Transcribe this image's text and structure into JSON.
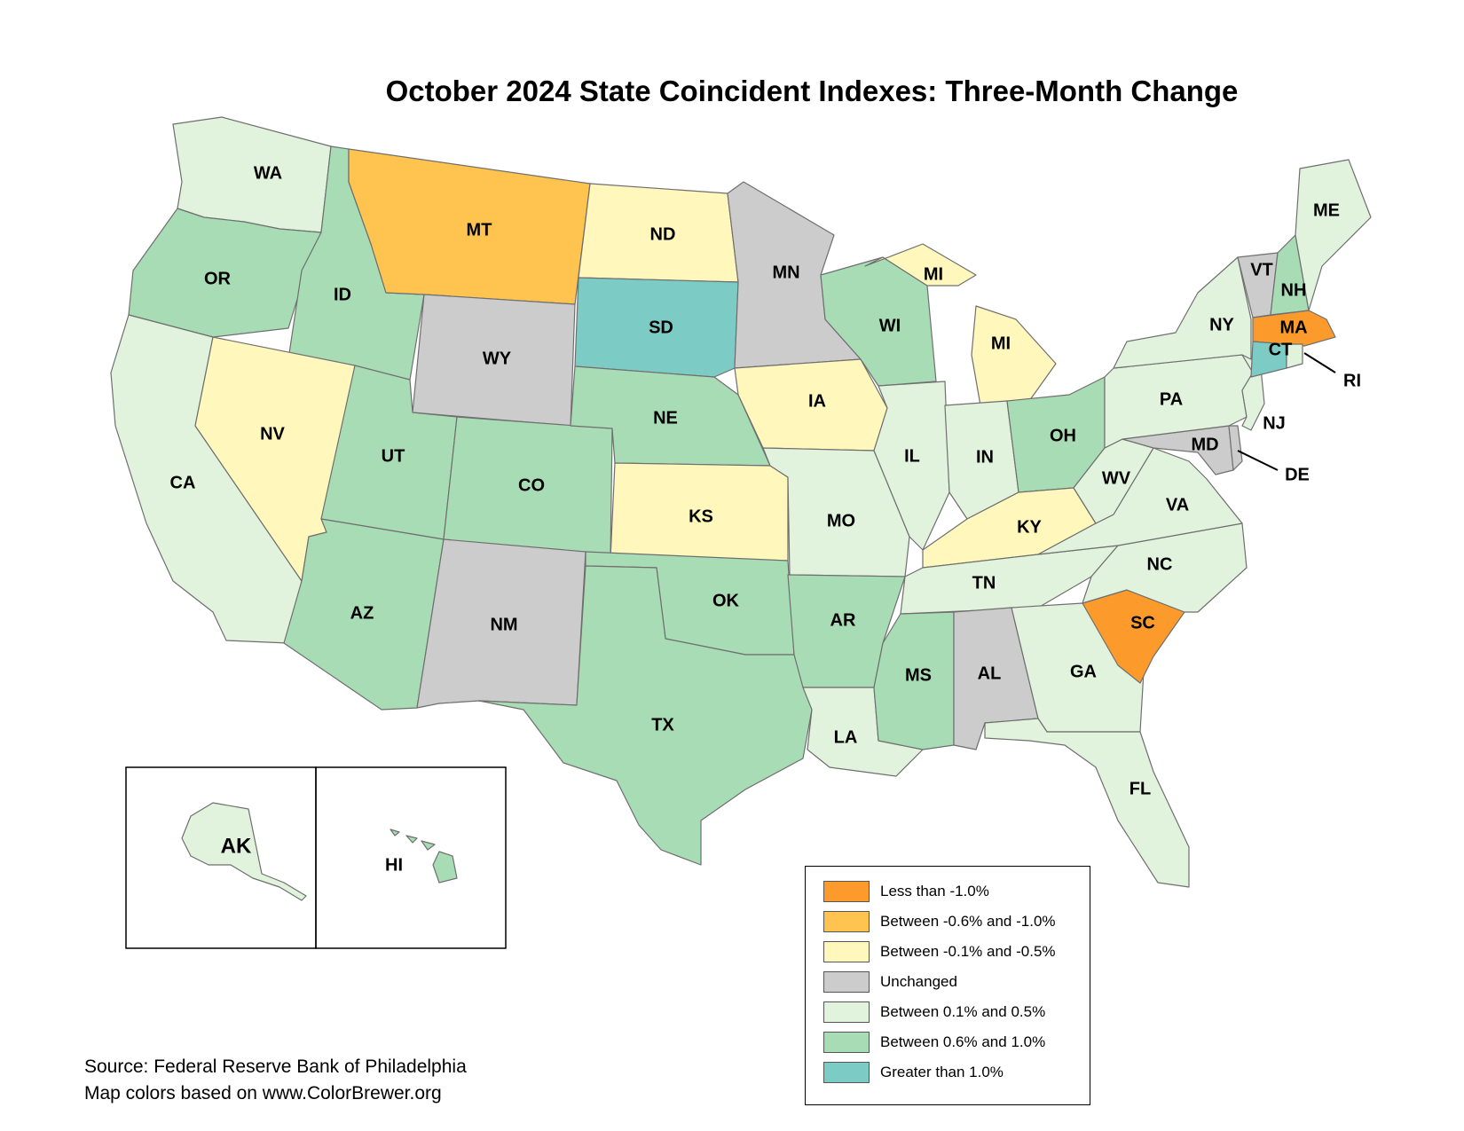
{
  "title": "October 2024 State Coincident Indexes: Three-Month Change",
  "categories": {
    "lt_neg1": {
      "label": "Less than -1.0%",
      "color": "#fd9a2c"
    },
    "neg06_neg1": {
      "label": "Between -0.6% and -1.0%",
      "color": "#fec44f"
    },
    "neg01_neg05": {
      "label": "Between -0.1% and -0.5%",
      "color": "#fff7bc"
    },
    "unchanged": {
      "label": "Unchanged",
      "color": "#cccccc"
    },
    "p01_p05": {
      "label": "Between 0.1% and 0.5%",
      "color": "#e1f3dc"
    },
    "p06_p1": {
      "label": "Between 0.6% and 1.0%",
      "color": "#a8dcb5"
    },
    "gt1": {
      "label": "Greater than 1.0%",
      "color": "#7ccbc4"
    }
  },
  "legend_order": [
    "lt_neg1",
    "neg06_neg1",
    "neg01_neg05",
    "unchanged",
    "p01_p05",
    "p06_p1",
    "gt1"
  ],
  "states": [
    {
      "abbr": "WA",
      "cat": "p01_p05"
    },
    {
      "abbr": "OR",
      "cat": "p06_p1"
    },
    {
      "abbr": "CA",
      "cat": "p01_p05"
    },
    {
      "abbr": "ID",
      "cat": "p06_p1"
    },
    {
      "abbr": "NV",
      "cat": "neg01_neg05"
    },
    {
      "abbr": "MT",
      "cat": "neg06_neg1"
    },
    {
      "abbr": "WY",
      "cat": "unchanged"
    },
    {
      "abbr": "UT",
      "cat": "p06_p1"
    },
    {
      "abbr": "AZ",
      "cat": "p06_p1"
    },
    {
      "abbr": "CO",
      "cat": "p06_p1"
    },
    {
      "abbr": "NM",
      "cat": "unchanged"
    },
    {
      "abbr": "ND",
      "cat": "neg01_neg05"
    },
    {
      "abbr": "SD",
      "cat": "gt1"
    },
    {
      "abbr": "NE",
      "cat": "p06_p1"
    },
    {
      "abbr": "KS",
      "cat": "neg01_neg05"
    },
    {
      "abbr": "OK",
      "cat": "p06_p1"
    },
    {
      "abbr": "TX",
      "cat": "p06_p1"
    },
    {
      "abbr": "MN",
      "cat": "unchanged"
    },
    {
      "abbr": "IA",
      "cat": "neg01_neg05"
    },
    {
      "abbr": "MO",
      "cat": "p01_p05"
    },
    {
      "abbr": "AR",
      "cat": "p06_p1"
    },
    {
      "abbr": "LA",
      "cat": "p01_p05"
    },
    {
      "abbr": "WI",
      "cat": "p06_p1"
    },
    {
      "abbr": "IL",
      "cat": "p01_p05"
    },
    {
      "abbr": "MI",
      "cat": "neg01_neg05"
    },
    {
      "abbr": "IN",
      "cat": "p01_p05"
    },
    {
      "abbr": "OH",
      "cat": "p06_p1"
    },
    {
      "abbr": "KY",
      "cat": "neg01_neg05"
    },
    {
      "abbr": "TN",
      "cat": "p01_p05"
    },
    {
      "abbr": "MS",
      "cat": "p06_p1"
    },
    {
      "abbr": "AL",
      "cat": "unchanged"
    },
    {
      "abbr": "GA",
      "cat": "p01_p05"
    },
    {
      "abbr": "FL",
      "cat": "p01_p05"
    },
    {
      "abbr": "SC",
      "cat": "lt_neg1"
    },
    {
      "abbr": "NC",
      "cat": "p01_p05"
    },
    {
      "abbr": "VA",
      "cat": "p01_p05"
    },
    {
      "abbr": "WV",
      "cat": "p01_p05"
    },
    {
      "abbr": "PA",
      "cat": "p01_p05"
    },
    {
      "abbr": "NY",
      "cat": "p01_p05"
    },
    {
      "abbr": "NJ",
      "cat": "p01_p05"
    },
    {
      "abbr": "DE",
      "cat": "unchanged"
    },
    {
      "abbr": "MD",
      "cat": "unchanged"
    },
    {
      "abbr": "VT",
      "cat": "unchanged"
    },
    {
      "abbr": "NH",
      "cat": "p06_p1"
    },
    {
      "abbr": "ME",
      "cat": "p01_p05"
    },
    {
      "abbr": "MA",
      "cat": "lt_neg1"
    },
    {
      "abbr": "CT",
      "cat": "gt1"
    },
    {
      "abbr": "RI",
      "cat": "p01_p05"
    },
    {
      "abbr": "AK",
      "cat": "p01_p05"
    },
    {
      "abbr": "HI",
      "cat": "p06_p1"
    }
  ],
  "source": {
    "line1": "Source: Federal Reserve Bank of Philadelphia",
    "line2": "Map colors based on www.ColorBrewer.org"
  }
}
